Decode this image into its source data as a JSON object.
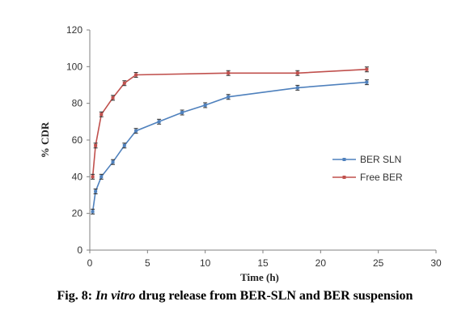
{
  "caption": {
    "label": "Fig. 8:",
    "italic": "In vitro",
    "rest": "drug release from BER-SLN and BER suspension"
  },
  "chart_data": {
    "type": "line",
    "title": "",
    "xlabel": "Time (h)",
    "ylabel": "% CDR",
    "xlim": [
      0,
      30
    ],
    "ylim": [
      0,
      120
    ],
    "x_ticks": [
      0,
      5,
      10,
      15,
      20,
      25,
      30
    ],
    "y_ticks": [
      0,
      20,
      40,
      60,
      80,
      100,
      120
    ],
    "grid": false,
    "legend_position": "right",
    "series": [
      {
        "name": "BER SLN",
        "color": "#4f81bd",
        "x": [
          0.25,
          0.5,
          1,
          2,
          3,
          4,
          6,
          8,
          10,
          12,
          18,
          24
        ],
        "y": [
          21,
          32,
          40,
          48,
          57,
          65,
          70,
          75,
          79,
          83.5,
          88.5,
          91.5
        ]
      },
      {
        "name": "Free BER",
        "color": "#c0504d",
        "x": [
          0.25,
          0.5,
          1,
          2,
          3,
          4,
          12,
          18,
          24
        ],
        "y": [
          40,
          57,
          74,
          83,
          91,
          95.5,
          96.5,
          96.5,
          98.5
        ]
      }
    ]
  }
}
